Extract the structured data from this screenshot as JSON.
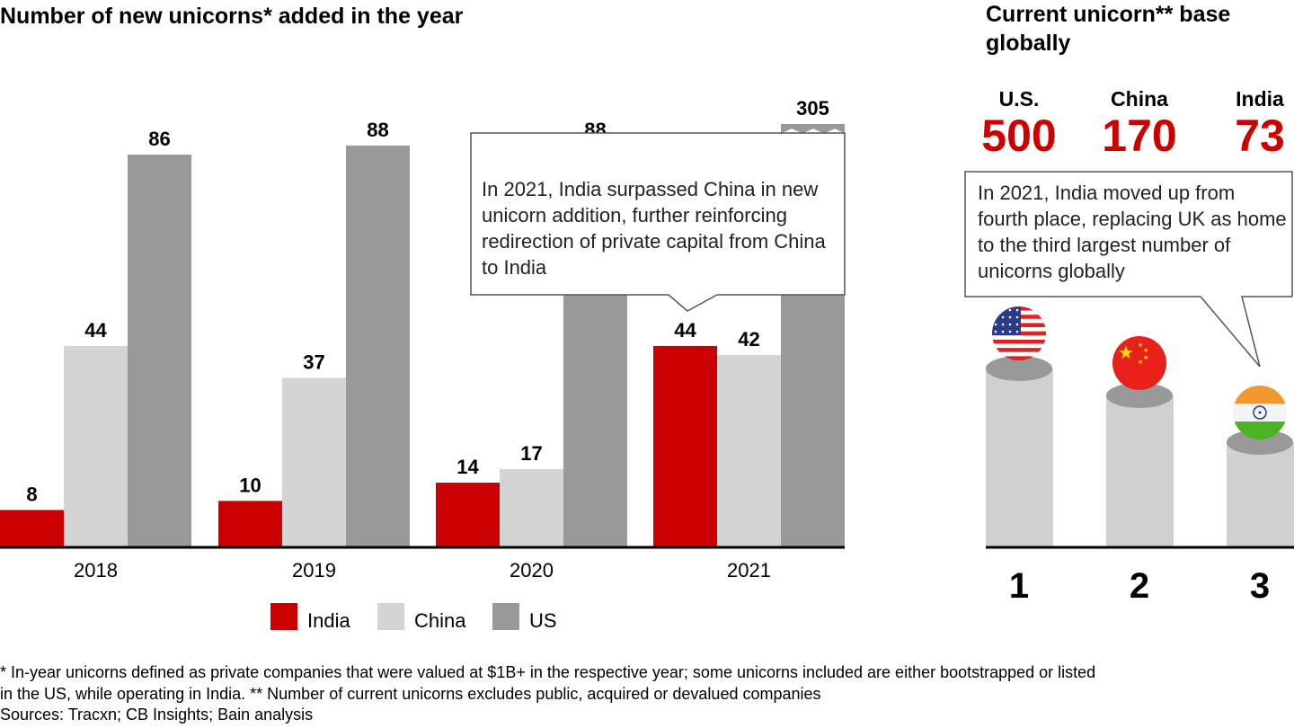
{
  "chart_data": [
    {
      "type": "bar",
      "title": "Number of new unicorns* added in the year",
      "categories": [
        "2018",
        "2019",
        "2020",
        "2021"
      ],
      "series": [
        {
          "name": "India",
          "values": [
            8,
            10,
            14,
            44
          ],
          "color": "#CC0000"
        },
        {
          "name": "China",
          "values": [
            44,
            37,
            17,
            42
          ],
          "color": "#D4D4D4"
        },
        {
          "name": "US",
          "values": [
            86,
            88,
            88,
            305
          ],
          "color": "#999999"
        }
      ],
      "axis_break": {
        "series": "US",
        "category": "2021",
        "note": "axis broken; value 305 exceeds scale"
      },
      "ylim": [
        0,
        90
      ],
      "legend": {
        "position": "bottom",
        "entries": [
          "India",
          "China",
          "US"
        ]
      },
      "annotation": "In 2021, India surpassed China in new unicorn addition, further reinforcing redirection of private capital from China to India",
      "xlabel": "",
      "ylabel": ""
    },
    {
      "type": "bar",
      "title": "Current unicorn** base globally",
      "categories": [
        "U.S.",
        "China",
        "India"
      ],
      "values": [
        500,
        170,
        73
      ],
      "ranks": [
        "1",
        "2",
        "3"
      ],
      "value_color": "#CC0000",
      "annotation": "In 2021, India moved up from fourth place, replacing UK as home to the third largest number of unicorns globally"
    }
  ],
  "footnotes": [
    "* In-year unicorns defined as private companies that were valued at $1B+ in the respective year; some unicorns included are either bootstrapped or listed",
    "in the US, while operating in India. ** Number of current unicorns excludes public, acquired or devalued companies",
    "Sources: Tracxn; CB Insights; Bain analysis"
  ],
  "flags": [
    "us-flag",
    "china-flag",
    "india-flag"
  ]
}
